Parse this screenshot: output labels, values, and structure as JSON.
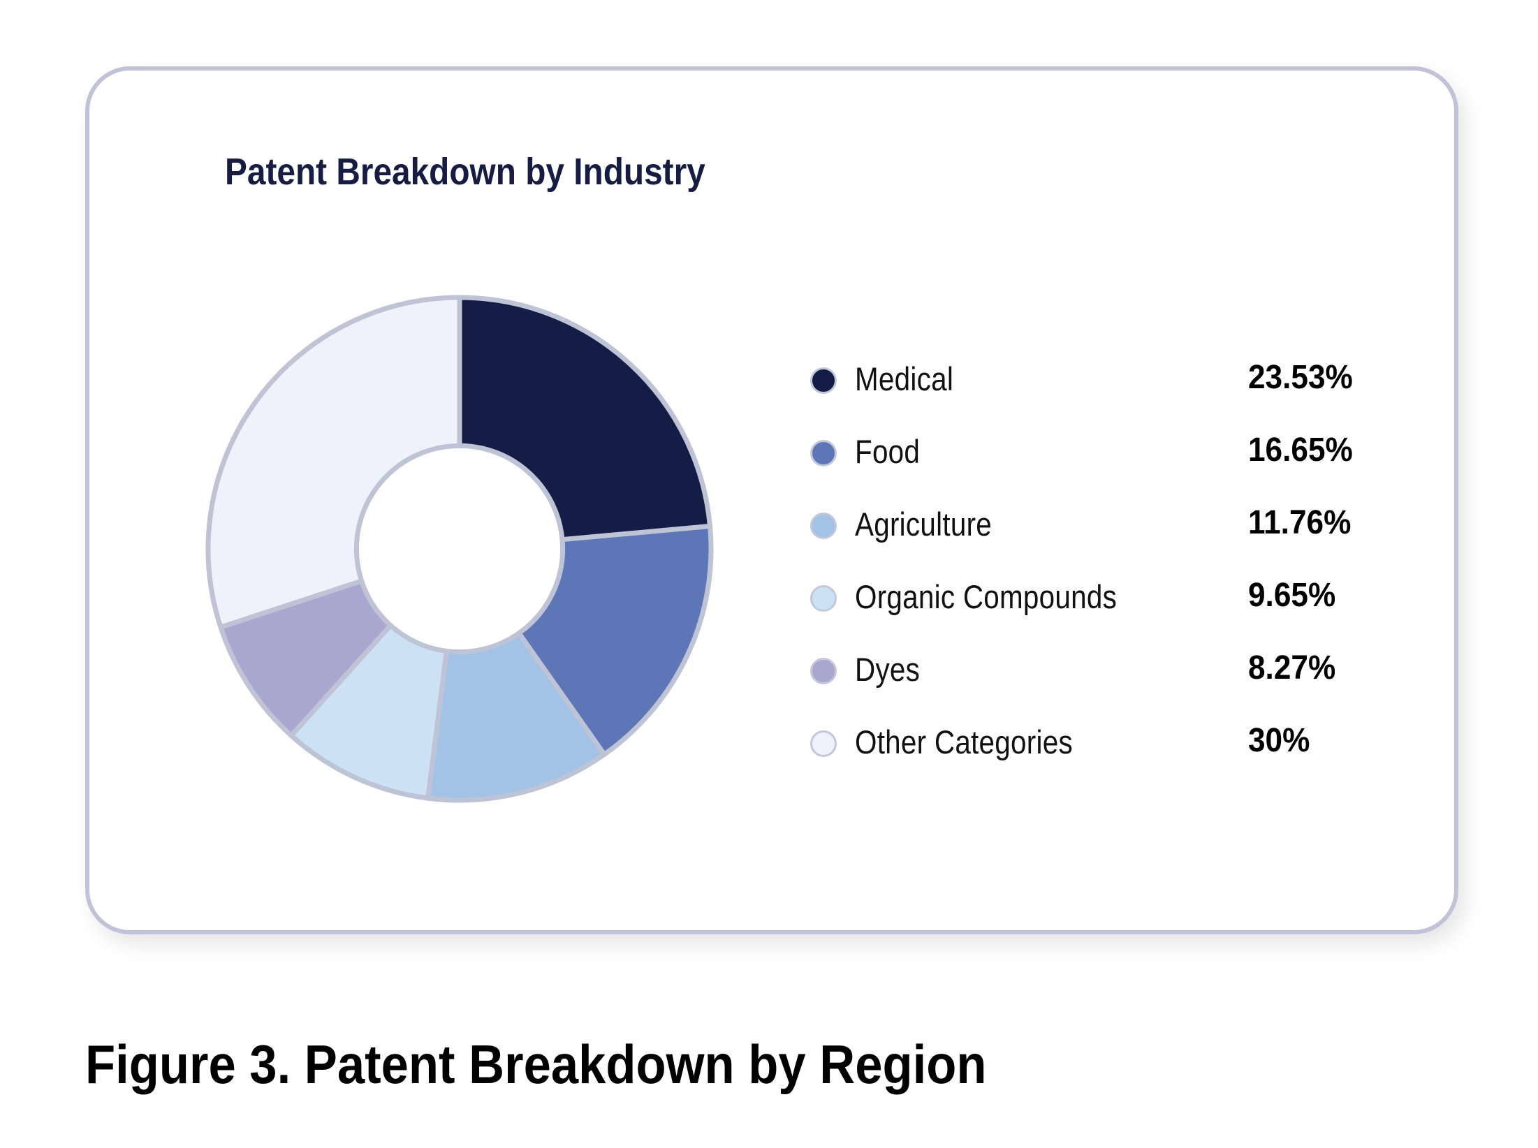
{
  "card": {
    "title": "Patent Breakdown by Industry"
  },
  "caption": "Figure 3. Patent Breakdown by Region",
  "colors": {
    "title": "#161c42",
    "card_border": "#c0c3d8",
    "segment_stroke": "#bec3d5"
  },
  "legend": [
    {
      "label": "Medical",
      "value": "23.53%",
      "color": "#151c45"
    },
    {
      "label": "Food",
      "value": "16.65%",
      "color": "#5d76b5"
    },
    {
      "label": "Agriculture",
      "value": "11.76%",
      "color": "#a2c3e5"
    },
    {
      "label": "Organic Compounds",
      "value": "9.65%",
      "color": "#cde1f4"
    },
    {
      "label": "Dyes",
      "value": "8.27%",
      "color": "#a8a7cf"
    },
    {
      "label": "Other Categories",
      "value": "30%",
      "color": "#eef2fa"
    }
  ],
  "chart_data": {
    "type": "pie",
    "subtype": "donut",
    "title": "Patent Breakdown by Industry",
    "caption": "Figure 3. Patent Breakdown by Region",
    "categories": [
      "Medical",
      "Food",
      "Agriculture",
      "Organic Compounds",
      "Dyes",
      "Other Categories"
    ],
    "values": [
      23.53,
      16.65,
      11.76,
      9.65,
      8.27,
      30
    ],
    "unit": "%",
    "colors": [
      "#151c45",
      "#5d76b5",
      "#a2c3e5",
      "#cde1f4",
      "#a8a7cf",
      "#eef2fa"
    ],
    "start_angle": "12 o'clock",
    "direction": "clockwise",
    "legend_position": "right",
    "inner_radius_ratio": 0.41
  }
}
